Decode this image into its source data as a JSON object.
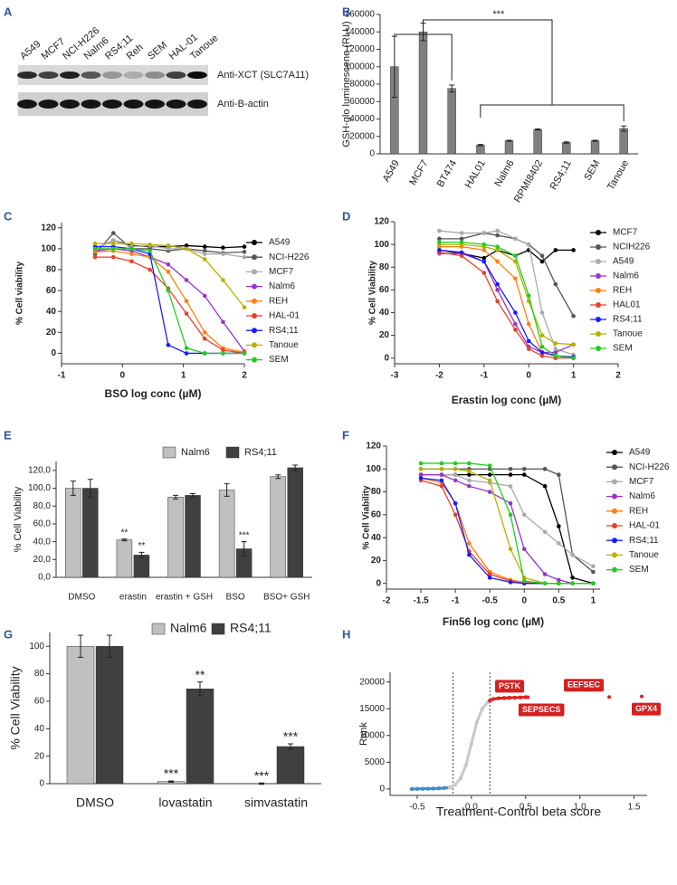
{
  "blot": {
    "panel": "A",
    "lanes": [
      "A549",
      "MCF7",
      "NCI-H226",
      "Nalm6",
      "RS4;11",
      "Reh",
      "SEM",
      "HAL-01",
      "Tanoue"
    ],
    "antibodies": [
      "Anti-XCT (SLC7A11)",
      "Anti-B-actin"
    ]
  },
  "chart_data": [
    {
      "panel": "B",
      "type": "bar",
      "ylabel": "GSH-glo luminescene (RLU)",
      "annotation": "***",
      "categories": [
        "A549",
        "MCF7",
        "BT474",
        "HAL01",
        "Nalm6",
        "RPMI8402",
        "RS4;11",
        "SEM",
        "Tanoue"
      ],
      "values": [
        100000,
        140000,
        75000,
        10000,
        15000,
        28000,
        13000,
        15000,
        29000
      ],
      "errors": [
        35000,
        10000,
        4000,
        800,
        600,
        600,
        800,
        600,
        3000
      ],
      "color": "#808080",
      "ylim": [
        0,
        160000
      ],
      "yticks": [
        0,
        20000,
        40000,
        60000,
        80000,
        100000,
        120000,
        140000,
        160000
      ]
    },
    {
      "panel": "C",
      "type": "line",
      "xlabel": "BSO log conc (µM)",
      "ylabel": "% Cell viability",
      "x": [
        -0.45,
        -0.15,
        0.15,
        0.45,
        0.75,
        1.05,
        1.35,
        1.65,
        2.0
      ],
      "series": [
        {
          "name": "A549",
          "color": "#000000",
          "values": [
            100,
            108,
            103,
            102,
            102,
            103,
            102,
            101,
            102
          ]
        },
        {
          "name": "NCI-H226",
          "color": "#555555",
          "values": [
            95,
            115,
            100,
            100,
            98,
            100,
            98,
            96,
            97
          ]
        },
        {
          "name": "MCF7",
          "color": "#aaaaaa",
          "values": [
            100,
            108,
            102,
            103,
            100,
            100,
            95,
            95,
            92
          ]
        },
        {
          "name": "Nalm6",
          "color": "#9933cc",
          "values": [
            98,
            100,
            98,
            92,
            85,
            70,
            55,
            30,
            2
          ]
        },
        {
          "name": "REH",
          "color": "#ff7f0e",
          "values": [
            97,
            98,
            95,
            92,
            78,
            50,
            20,
            5,
            1
          ]
        },
        {
          "name": "HAL-01",
          "color": "#e8402a",
          "values": [
            92,
            92,
            88,
            80,
            62,
            38,
            14,
            3,
            0
          ]
        },
        {
          "name": "RS4;11",
          "color": "#1a1aff",
          "values": [
            102,
            102,
            100,
            95,
            8,
            0,
            0,
            0,
            0
          ]
        },
        {
          "name": "Tanoue",
          "color": "#b8b000",
          "values": [
            105,
            105,
            105,
            104,
            103,
            100,
            90,
            70,
            44
          ]
        },
        {
          "name": "SEM",
          "color": "#22cc22",
          "values": [
            100,
            100,
            100,
            98,
            60,
            5,
            0,
            0,
            0
          ]
        }
      ],
      "xlim": [
        -1,
        2
      ],
      "xticks": [
        -1,
        0,
        1,
        2
      ],
      "ylim": [
        -10,
        125
      ],
      "yticks": [
        0,
        20,
        40,
        60,
        80,
        100,
        120
      ]
    },
    {
      "panel": "D",
      "type": "line",
      "xlabel": "Erastin log conc (µM)",
      "ylabel": "% Cell Viability",
      "x": [
        -2,
        -1.5,
        -1,
        -0.7,
        -0.3,
        0,
        0.3,
        0.6,
        1
      ],
      "series": [
        {
          "name": "MCF7",
          "color": "#000000",
          "values": [
            95,
            92,
            88,
            95,
            90,
            95,
            85,
            95,
            95
          ]
        },
        {
          "name": "NCIH226",
          "color": "#555555",
          "values": [
            105,
            105,
            110,
            108,
            105,
            100,
            90,
            65,
            37
          ]
        },
        {
          "name": "A549",
          "color": "#aaaaaa",
          "values": [
            112,
            110,
            110,
            112,
            105,
            100,
            40,
            8,
            3
          ]
        },
        {
          "name": "Nalm6",
          "color": "#9933cc",
          "values": [
            92,
            92,
            85,
            60,
            30,
            10,
            5,
            5,
            12
          ]
        },
        {
          "name": "REH",
          "color": "#ff7f0e",
          "values": [
            98,
            98,
            95,
            85,
            70,
            30,
            5,
            2,
            0
          ]
        },
        {
          "name": "HAL01",
          "color": "#e8402a",
          "values": [
            93,
            90,
            75,
            50,
            25,
            8,
            2,
            0,
            0
          ]
        },
        {
          "name": "RS4;11",
          "color": "#1a1aff",
          "values": [
            95,
            93,
            85,
            65,
            40,
            15,
            5,
            2,
            1
          ]
        },
        {
          "name": "Tanoue",
          "color": "#b8b000",
          "values": [
            100,
            100,
            98,
            95,
            85,
            50,
            20,
            13,
            12
          ]
        },
        {
          "name": "SEM",
          "color": "#22cc22",
          "values": [
            102,
            102,
            100,
            98,
            90,
            55,
            10,
            2,
            0
          ]
        }
      ],
      "xlim": [
        -3,
        2
      ],
      "xticks": [
        -3,
        -2,
        -1,
        0,
        1,
        2
      ],
      "ylim": [
        -5,
        120
      ],
      "yticks": [
        0,
        20,
        40,
        60,
        80,
        100,
        120
      ]
    },
    {
      "panel": "E",
      "type": "bar",
      "ylabel": "% Cell Viability",
      "categories": [
        "DMSO",
        "erastin",
        "erastin + GSH",
        "BSO",
        "BSO+ GSH"
      ],
      "series": [
        {
          "name": "Nalm6",
          "color": "#c0c0c0",
          "values": [
            100,
            42,
            90,
            98,
            113
          ],
          "errors": [
            8,
            1,
            2,
            7,
            2
          ],
          "stars": [
            null,
            "**",
            null,
            null,
            null
          ]
        },
        {
          "name": "RS4;11",
          "color": "#404040",
          "values": [
            100,
            25,
            92,
            32,
            123
          ],
          "errors": [
            10,
            3,
            2,
            8,
            3
          ],
          "stars": [
            null,
            "**",
            null,
            "***",
            null
          ]
        }
      ],
      "ylim": [
        0,
        130
      ],
      "yticks": [
        {
          "value": 0,
          "label": "0,0"
        },
        {
          "value": 20,
          "label": "20,0"
        },
        {
          "value": 40,
          "label": "40,0"
        },
        {
          "value": 60,
          "label": "60,0"
        },
        {
          "value": 80,
          "label": "80,0"
        },
        {
          "value": 100,
          "label": "100,0"
        },
        {
          "value": 120,
          "label": "120,0"
        }
      ]
    },
    {
      "panel": "F",
      "type": "line",
      "xlabel": "Fin56 log conc (µM)",
      "ylabel": "% Cell Viability",
      "x": [
        -1.5,
        -1.2,
        -1,
        -0.8,
        -0.5,
        -0.2,
        0,
        0.3,
        0.5,
        0.7,
        1
      ],
      "series": [
        {
          "name": "A549",
          "color": "#000000",
          "values": [
            95,
            95,
            95,
            95,
            95,
            95,
            95,
            85,
            50,
            5,
            0
          ]
        },
        {
          "name": "NCI-H226",
          "color": "#555555",
          "values": [
            100,
            100,
            100,
            100,
            100,
            100,
            100,
            100,
            95,
            25,
            10
          ]
        },
        {
          "name": "MCF7",
          "color": "#aaaaaa",
          "values": [
            95,
            95,
            95,
            90,
            88,
            85,
            60,
            45,
            35,
            25,
            15
          ]
        },
        {
          "name": "Nalm6",
          "color": "#9933cc",
          "values": [
            95,
            95,
            90,
            85,
            80,
            70,
            30,
            8,
            3,
            0,
            0
          ]
        },
        {
          "name": "REH",
          "color": "#ff7f0e",
          "values": [
            92,
            88,
            70,
            35,
            10,
            3,
            1,
            0,
            0,
            0,
            0
          ]
        },
        {
          "name": "HAL-01",
          "color": "#e8402a",
          "values": [
            90,
            85,
            60,
            28,
            8,
            2,
            0,
            0,
            0,
            0,
            0
          ]
        },
        {
          "name": "RS4;11",
          "color": "#1a1aff",
          "values": [
            92,
            90,
            70,
            25,
            5,
            1,
            0,
            0,
            0,
            0,
            0
          ]
        },
        {
          "name": "Tanoue",
          "color": "#b8b000",
          "values": [
            100,
            100,
            100,
            98,
            90,
            30,
            5,
            0,
            0,
            0,
            0
          ]
        },
        {
          "name": "SEM",
          "color": "#22cc22",
          "values": [
            105,
            105,
            105,
            105,
            103,
            60,
            2,
            0,
            0,
            0,
            0
          ]
        }
      ],
      "xlim": [
        -2,
        1.1
      ],
      "xticks": [
        -2,
        -1.5,
        -1,
        -0.5,
        0,
        0.5,
        1
      ],
      "ylim": [
        -5,
        120
      ],
      "yticks": [
        0,
        20,
        40,
        60,
        80,
        100,
        120
      ]
    },
    {
      "panel": "G",
      "type": "bar",
      "ylabel": "% Cell Viability",
      "categories": [
        "DMSO",
        "lovastatin",
        "simvastatin"
      ],
      "series": [
        {
          "name": "Nalm6",
          "color": "#c0c0c0",
          "values": [
            100,
            1.5,
            0
          ],
          "errors": [
            8,
            0.5,
            0.5
          ],
          "stars": [
            null,
            "***",
            "***"
          ]
        },
        {
          "name": "RS4;11",
          "color": "#404040",
          "values": [
            100,
            69,
            27
          ],
          "errors": [
            8,
            5,
            2
          ],
          "stars": [
            null,
            "**",
            "***"
          ]
        }
      ],
      "ylim": [
        0,
        110
      ],
      "yticks": [
        0,
        20,
        40,
        60,
        80,
        100
      ]
    },
    {
      "panel": "H",
      "type": "scatter",
      "xlabel": "Treatment-Control beta score",
      "ylabel": "Rank",
      "series": [
        {
          "color": "#3a8fd0",
          "x": [
            -0.55,
            -0.5,
            -0.45,
            -0.4,
            -0.35,
            -0.3,
            -0.25,
            -0.2
          ],
          "values": [
            0,
            20,
            40,
            60,
            80,
            120,
            180,
            300
          ]
        },
        {
          "color": "#c8c8c8",
          "x": [
            -0.2,
            -0.15,
            -0.1,
            -0.05,
            0,
            0.05,
            0.1,
            0.15,
            0.17
          ],
          "values": [
            300,
            800,
            2000,
            4500,
            8500,
            12500,
            15000,
            16200,
            16500
          ]
        },
        {
          "color": "#e02020",
          "x": [
            0.17,
            0.2,
            0.25,
            0.3,
            0.35,
            0.4,
            0.45,
            0.5
          ],
          "values": [
            16500,
            16800,
            16950,
            17000,
            17050,
            17080,
            17100,
            17150
          ]
        }
      ],
      "highlights": [
        {
          "label": "PSTK",
          "x": 0.31,
          "y": 17000
        },
        {
          "label": "SEPSECS",
          "x": 0.52,
          "y": 17150
        },
        {
          "label": "EEFSEC",
          "x": 1.27,
          "y": 17200
        },
        {
          "label": "GPX4",
          "x": 1.57,
          "y": 17300
        }
      ],
      "vlines": [
        -0.17,
        0.17
      ],
      "xlim": [
        -0.75,
        1.62
      ],
      "xticks": [
        -0.5,
        {
          "value": 0,
          "label": "0.0"
        },
        0.5,
        {
          "value": 1,
          "label": "1.0"
        },
        1.5
      ],
      "ylim": [
        -1200,
        21800
      ],
      "yticks": [
        0,
        5000,
        10000,
        15000,
        20000
      ]
    }
  ]
}
